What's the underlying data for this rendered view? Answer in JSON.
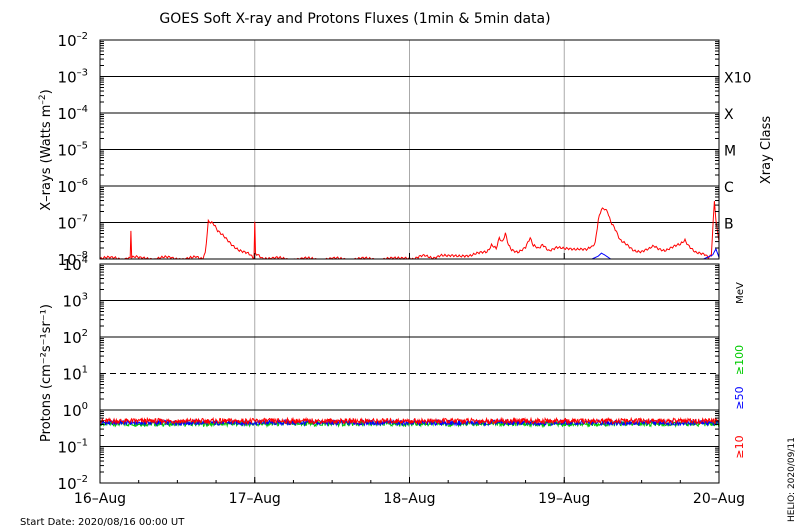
{
  "chart_data": [
    {
      "type": "line",
      "panel": "xrays",
      "title": "GOES Soft X-ray and Protons Fluxes   (1min & 5min data)",
      "ylabel_prefix": "X–rays (Watts m",
      "ylabel_exp": "–2",
      "ylabel_suffix": ")",
      "y_scale": "log",
      "ylim": [
        1e-08,
        0.01
      ],
      "y_ticks": [
        {
          "value": 0.01,
          "base": "10",
          "exp": "–2"
        },
        {
          "value": 0.001,
          "base": "10",
          "exp": "–3"
        },
        {
          "value": 0.0001,
          "base": "10",
          "exp": "–4"
        },
        {
          "value": 1e-05,
          "base": "10",
          "exp": "–5"
        },
        {
          "value": 1e-06,
          "base": "10",
          "exp": "–6"
        },
        {
          "value": 1e-07,
          "base": "10",
          "exp": "–7"
        },
        {
          "value": 1e-08,
          "base": "10",
          "exp": "–8"
        }
      ],
      "right_axis_label": "Xray Class",
      "class_labels": [
        {
          "label": "X10",
          "value": 0.001
        },
        {
          "label": "X",
          "value": 0.0001
        },
        {
          "label": "M",
          "value": 1e-05
        },
        {
          "label": "C",
          "value": 1e-06
        },
        {
          "label": "B",
          "value": 1e-07
        }
      ],
      "series": [
        {
          "color": "#ff0000",
          "points": [
            [
              0.0,
              1e-08
            ],
            [
              0.1,
              1.1e-08
            ],
            [
              0.15,
              1e-08
            ],
            [
              0.195,
              1e-08
            ],
            [
              0.2,
              6e-08
            ],
            [
              0.205,
              1.2e-08
            ],
            [
              0.25,
              1.05e-08
            ],
            [
              0.3,
              1.1e-08
            ],
            [
              0.35,
              1e-08
            ],
            [
              0.4,
              1.05e-08
            ],
            [
              0.45,
              1.1e-08
            ],
            [
              0.5,
              1.05e-08
            ],
            [
              0.55,
              1e-08
            ],
            [
              0.6,
              1.05e-08
            ],
            [
              0.62,
              1.1e-08
            ],
            [
              0.66,
              1e-08
            ],
            [
              0.68,
              1.5e-08
            ],
            [
              0.7,
              1.15e-07
            ],
            [
              0.73,
              9e-08
            ],
            [
              0.76,
              6e-08
            ],
            [
              0.8,
              4e-08
            ],
            [
              0.85,
              2.6e-08
            ],
            [
              0.9,
              1.8e-08
            ],
            [
              0.95,
              1.4e-08
            ],
            [
              0.98,
              1.2e-08
            ],
            [
              0.995,
              1.15e-08
            ],
            [
              1.0,
              9.5e-08
            ],
            [
              1.005,
              1.3e-08
            ],
            [
              1.05,
              1.1e-08
            ],
            [
              1.1,
              1.05e-08
            ],
            [
              1.2,
              1e-08
            ],
            [
              1.3,
              1e-08
            ],
            [
              1.4,
              1e-08
            ],
            [
              1.5,
              1e-08
            ],
            [
              1.6,
              1e-08
            ],
            [
              1.7,
              1e-08
            ],
            [
              1.8,
              1e-08
            ],
            [
              1.9,
              1e-08
            ],
            [
              1.99,
              1e-08
            ],
            [
              2.0,
              1.1e-08
            ],
            [
              2.02,
              1.05e-08
            ],
            [
              2.1,
              1.2e-08
            ],
            [
              2.15,
              1.1e-08
            ],
            [
              2.2,
              1.3e-08
            ],
            [
              2.25,
              1.15e-08
            ],
            [
              2.3,
              1.2e-08
            ],
            [
              2.35,
              1.3e-08
            ],
            [
              2.4,
              1.25e-08
            ],
            [
              2.45,
              1.4e-08
            ],
            [
              2.5,
              1.6e-08
            ],
            [
              2.53,
              2.5e-08
            ],
            [
              2.56,
              1.8e-08
            ],
            [
              2.58,
              3.5e-08
            ],
            [
              2.6,
              2.8e-08
            ],
            [
              2.62,
              5e-08
            ],
            [
              2.64,
              2.5e-08
            ],
            [
              2.66,
              1.9e-08
            ],
            [
              2.7,
              1.6e-08
            ],
            [
              2.75,
              2.2e-08
            ],
            [
              2.78,
              3.5e-08
            ],
            [
              2.8,
              2.2e-08
            ],
            [
              2.83,
              2e-08
            ],
            [
              2.86,
              2.6e-08
            ],
            [
              2.9,
              1.8e-08
            ],
            [
              2.95,
              2.1e-08
            ],
            [
              3.0,
              1.8e-08
            ],
            [
              3.05,
              1.9e-08
            ],
            [
              3.1,
              2e-08
            ],
            [
              3.15,
              1.8e-08
            ],
            [
              3.18,
              2.1e-08
            ],
            [
              3.2,
              2.6e-08
            ],
            [
              3.22,
              1.1e-07
            ],
            [
              3.24,
              2.2e-07
            ],
            [
              3.26,
              2.3e-07
            ],
            [
              3.28,
              2e-07
            ],
            [
              3.3,
              1.1e-07
            ],
            [
              3.33,
              6e-08
            ],
            [
              3.36,
              3.5e-08
            ],
            [
              3.4,
              2.5e-08
            ],
            [
              3.45,
              1.8e-08
            ],
            [
              3.5,
              1.6e-08
            ],
            [
              3.55,
              1.8e-08
            ],
            [
              3.58,
              2.4e-08
            ],
            [
              3.6,
              2e-08
            ],
            [
              3.65,
              1.8e-08
            ],
            [
              3.7,
              2.1e-08
            ],
            [
              3.75,
              2.4e-08
            ],
            [
              3.78,
              3.5e-08
            ],
            [
              3.8,
              2.5e-08
            ],
            [
              3.85,
              1.6e-08
            ],
            [
              3.9,
              1.3e-08
            ],
            [
              3.93,
              1.1e-08
            ],
            [
              3.95,
              1.2e-08
            ],
            [
              3.97,
              3.5e-07
            ],
            [
              3.98,
              1.3e-07
            ],
            [
              3.99,
              5e-08
            ],
            [
              4.0,
              3e-08
            ]
          ]
        },
        {
          "color": "#0000ff",
          "points": [
            [
              0.0,
              1e-08
            ],
            [
              3.18,
              1e-08
            ],
            [
              3.22,
              1.2e-08
            ],
            [
              3.24,
              1.45e-08
            ],
            [
              3.26,
              1.3e-08
            ],
            [
              3.3,
              1e-08
            ],
            [
              3.9,
              1e-08
            ],
            [
              3.96,
              1.3e-08
            ],
            [
              3.98,
              1.9e-08
            ],
            [
              4.0,
              1.1e-08
            ]
          ]
        }
      ]
    },
    {
      "type": "line",
      "panel": "protons",
      "ylabel": "Protons (cm⁻²s⁻¹sr⁻¹)",
      "y_scale": "log",
      "ylim": [
        0.01,
        10000
      ],
      "y_ticks": [
        {
          "value": 10000.0,
          "base": "10",
          "exp": "4"
        },
        {
          "value": 1000.0,
          "base": "10",
          "exp": "3"
        },
        {
          "value": 100.0,
          "base": "10",
          "exp": "2"
        },
        {
          "value": 10.0,
          "base": "10",
          "exp": "1"
        },
        {
          "value": 1.0,
          "base": "10",
          "exp": "0"
        },
        {
          "value": 0.1,
          "base": "10",
          "exp": "–1"
        },
        {
          "value": 0.01,
          "base": "10",
          "exp": "–2"
        }
      ],
      "threshold": 10,
      "energy_unit": "MeV",
      "series": [
        {
          "name": "≥100",
          "color": "#00cc00",
          "base_value": 0.42
        },
        {
          "name": "≥50",
          "color": "#0000ff",
          "base_value": 0.45
        },
        {
          "name": "≥10",
          "color": "#ff0000",
          "base_value": 0.5
        }
      ]
    }
  ],
  "x_axis": {
    "range_days": [
      0,
      4
    ],
    "tick_labels": [
      "16–Aug",
      "17–Aug",
      "18–Aug",
      "19–Aug",
      "20–Aug"
    ]
  },
  "footer": {
    "start_date": "Start Date: 2020/08/16 00:00 UT",
    "helio": "HELIO: 2020/09/11"
  }
}
